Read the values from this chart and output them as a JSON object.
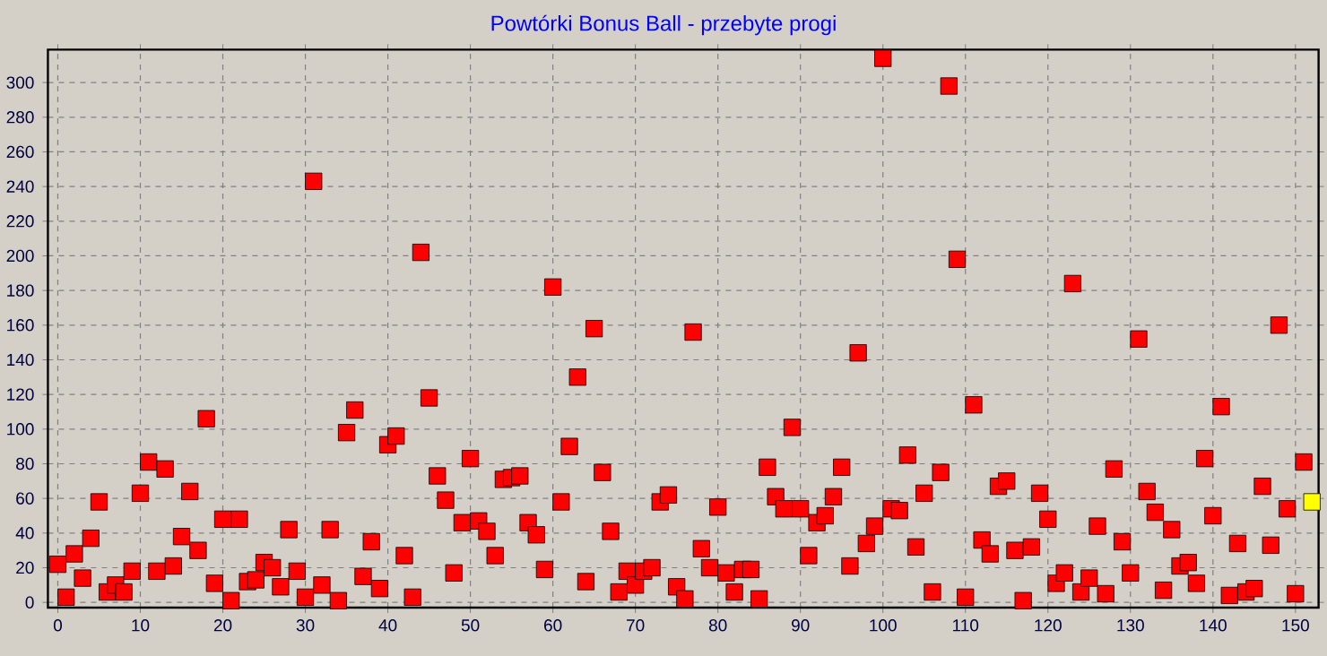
{
  "chart_data": {
    "type": "scatter",
    "title": "Powtórki Bonus Ball - przebyte progi",
    "x": [
      0,
      1,
      2,
      3,
      4,
      5,
      6,
      7,
      8,
      9,
      10,
      11,
      12,
      13,
      14,
      15,
      16,
      17,
      18,
      19,
      20,
      21,
      22,
      23,
      24,
      25,
      26,
      27,
      28,
      29,
      30,
      31,
      32,
      33,
      34,
      35,
      36,
      37,
      38,
      39,
      40,
      41,
      42,
      43,
      44,
      45,
      46,
      47,
      48,
      49,
      50,
      51,
      52,
      53,
      54,
      55,
      56,
      57,
      58,
      59,
      60,
      61,
      62,
      63,
      64,
      65,
      66,
      67,
      68,
      69,
      70,
      71,
      72,
      73,
      74,
      75,
      76,
      77,
      78,
      79,
      80,
      81,
      82,
      83,
      84,
      85,
      86,
      87,
      88,
      89,
      90,
      91,
      92,
      93,
      94,
      95,
      96,
      97,
      98,
      99,
      100,
      101,
      102,
      103,
      104,
      105,
      106,
      107,
      108,
      109,
      110,
      111,
      112,
      113,
      114,
      115,
      116,
      117,
      118,
      119,
      120,
      121,
      122,
      123,
      124,
      125,
      126,
      127,
      128,
      129,
      130,
      131,
      132,
      133,
      134,
      135,
      136,
      137,
      138,
      139,
      140,
      141,
      142,
      143,
      144,
      145,
      146,
      147,
      148,
      149,
      150,
      151,
      152
    ],
    "values": [
      22,
      3,
      28,
      14,
      37,
      58,
      6,
      10,
      6,
      18,
      63,
      81,
      18,
      77,
      21,
      38,
      64,
      30,
      106,
      11,
      48,
      1,
      48,
      12,
      13,
      23,
      20,
      9,
      42,
      18,
      3,
      243,
      10,
      42,
      1,
      98,
      111,
      15,
      35,
      8,
      91,
      96,
      27,
      3,
      202,
      118,
      73,
      59,
      17,
      46,
      83,
      47,
      41,
      27,
      71,
      72,
      73,
      46,
      39,
      19,
      182,
      58,
      90,
      130,
      12,
      158,
      75,
      41,
      6,
      18,
      10,
      18,
      20,
      58,
      62,
      9,
      2,
      156,
      31,
      20,
      55,
      17,
      6,
      19,
      19,
      2,
      78,
      61,
      54,
      101,
      54,
      27,
      46,
      50,
      61,
      78,
      21,
      144,
      34,
      44,
      314,
      54,
      53,
      85,
      32,
      63,
      6,
      75,
      298,
      198,
      3,
      114,
      36,
      28,
      67,
      70,
      30,
      1,
      32,
      63,
      48,
      11,
      17,
      184,
      6,
      14,
      44,
      5,
      77,
      35,
      17,
      152,
      64,
      52,
      7,
      42,
      21,
      23,
      11,
      83,
      50,
      113,
      4,
      34,
      6,
      8,
      67,
      33,
      160,
      54,
      5,
      81,
      58
    ],
    "colors": [
      "#ff0000",
      "#ff0000",
      "#ff0000",
      "#ff0000",
      "#ff0000",
      "#ff0000",
      "#ff0000",
      "#ff0000",
      "#ff0000",
      "#ff0000",
      "#ff0000",
      "#ff0000",
      "#ff0000",
      "#ff0000",
      "#ff0000",
      "#ff0000",
      "#ff0000",
      "#ff0000",
      "#ff0000",
      "#ff0000",
      "#ff0000",
      "#ff0000",
      "#ff0000",
      "#ff0000",
      "#ff0000",
      "#ff0000",
      "#ff0000",
      "#ff0000",
      "#ff0000",
      "#ff0000",
      "#ff0000",
      "#ff0000",
      "#ff0000",
      "#ff0000",
      "#ff0000",
      "#ff0000",
      "#ff0000",
      "#ff0000",
      "#ff0000",
      "#ff0000",
      "#ff0000",
      "#ff0000",
      "#ff0000",
      "#ff0000",
      "#ff0000",
      "#ff0000",
      "#ff0000",
      "#ff0000",
      "#ff0000",
      "#ff0000",
      "#ff0000",
      "#ff0000",
      "#ff0000",
      "#ff0000",
      "#ff0000",
      "#ff0000",
      "#ff0000",
      "#ff0000",
      "#ff0000",
      "#ff0000",
      "#ff0000",
      "#ff0000",
      "#ff0000",
      "#ff0000",
      "#ff0000",
      "#ff0000",
      "#ff0000",
      "#ff0000",
      "#ff0000",
      "#ff0000",
      "#ff0000",
      "#ff0000",
      "#ff0000",
      "#ff0000",
      "#ff0000",
      "#ff0000",
      "#ff0000",
      "#ff0000",
      "#ff0000",
      "#ff0000",
      "#ff0000",
      "#ff0000",
      "#ff0000",
      "#ff0000",
      "#ff0000",
      "#ff0000",
      "#ff0000",
      "#ff0000",
      "#ff0000",
      "#ff0000",
      "#ff0000",
      "#ff0000",
      "#ff0000",
      "#ff0000",
      "#ff0000",
      "#ff0000",
      "#ff0000",
      "#ff0000",
      "#ff0000",
      "#ff0000",
      "#ff0000",
      "#ff0000",
      "#ff0000",
      "#ff0000",
      "#ff0000",
      "#ff0000",
      "#ff0000",
      "#ff0000",
      "#ff0000",
      "#ff0000",
      "#ff0000",
      "#ff0000",
      "#ff0000",
      "#ff0000",
      "#ff0000",
      "#ff0000",
      "#ff0000",
      "#ff0000",
      "#ff0000",
      "#ff0000",
      "#ff0000",
      "#ff0000",
      "#ff0000",
      "#ff0000",
      "#ff0000",
      "#ff0000",
      "#ff0000",
      "#ff0000",
      "#ff0000",
      "#ff0000",
      "#ff0000",
      "#ff0000",
      "#ff0000",
      "#ff0000",
      "#ff0000",
      "#ff0000",
      "#ff0000",
      "#ff0000",
      "#ff0000",
      "#ff0000",
      "#ff0000",
      "#ff0000",
      "#ff0000",
      "#ff0000",
      "#ff0000",
      "#ff0000",
      "#ff0000",
      "#ff0000",
      "#ff0000",
      "#ff0000",
      "#ff0000",
      "#ff0000",
      "#ffff00"
    ],
    "xlim": [
      -1.2,
      152.8
    ],
    "ylim": [
      -3,
      319
    ],
    "xticks": [
      0,
      10,
      20,
      30,
      40,
      50,
      60,
      70,
      80,
      90,
      100,
      110,
      120,
      130,
      140,
      150
    ],
    "yticks": [
      0,
      20,
      40,
      60,
      80,
      100,
      120,
      140,
      160,
      180,
      200,
      220,
      240,
      260,
      280,
      300
    ],
    "grid": true,
    "marker": "square"
  }
}
